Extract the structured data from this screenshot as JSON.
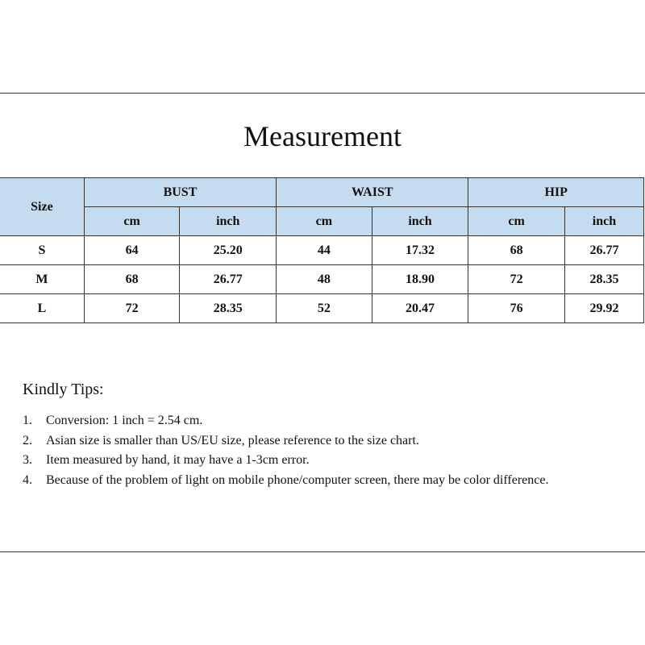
{
  "title": "Measurement",
  "table": {
    "size_header": "Size",
    "groups": [
      "BUST",
      "WAIST",
      "HIP"
    ],
    "units": [
      "cm",
      "inch",
      "cm",
      "inch",
      "cm",
      "inch"
    ],
    "rows": [
      {
        "size": "S",
        "values": [
          "64",
          "25.20",
          "44",
          "17.32",
          "68",
          "26.77"
        ]
      },
      {
        "size": "M",
        "values": [
          "68",
          "26.77",
          "48",
          "18.90",
          "72",
          "28.35"
        ]
      },
      {
        "size": "L",
        "values": [
          "72",
          "28.35",
          "52",
          "20.47",
          "76",
          "29.92"
        ]
      }
    ],
    "header_color": "#c5dcf0"
  },
  "tips": {
    "title": "Kindly Tips:",
    "items": [
      {
        "num": "1.",
        "text": "Conversion: 1 inch = 2.54 cm."
      },
      {
        "num": "2.",
        "text": "Asian size is smaller than US/EU size, please reference to the size chart."
      },
      {
        "num": "3.",
        "text": "Item measured by hand, it may have a 1-3cm error."
      },
      {
        "num": "4.",
        "text": "Because of the problem of light on mobile phone/computer screen, there may be color difference."
      }
    ]
  }
}
